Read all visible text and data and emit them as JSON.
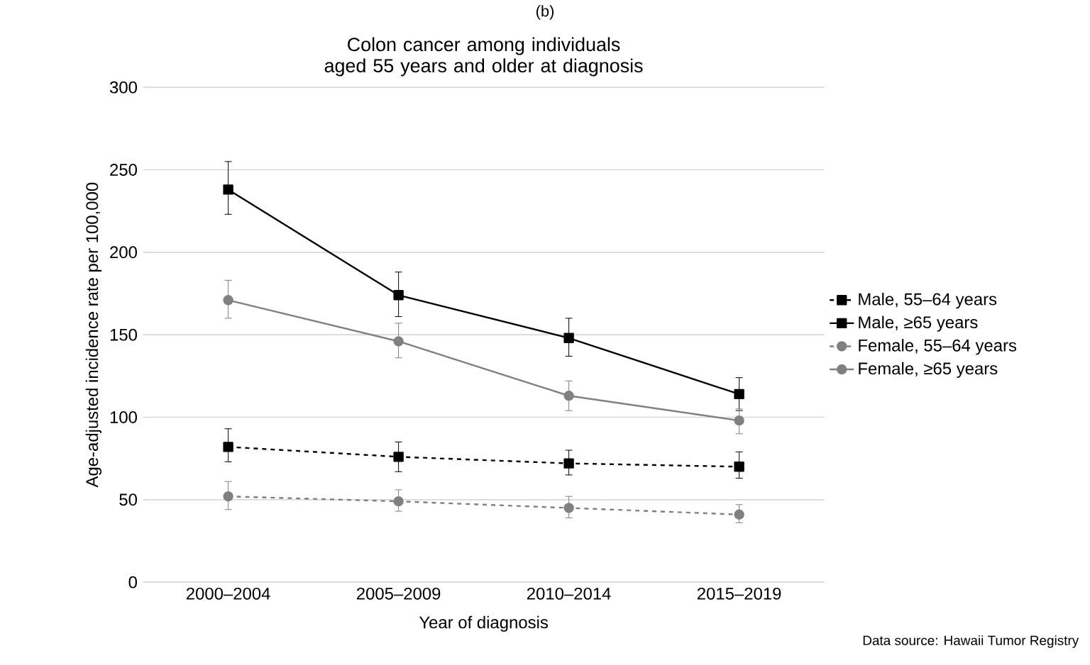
{
  "chart_data": {
    "type": "line",
    "title": "Colon cancer among individuals aged 55 years and older at diagnosis",
    "xlabel": "Year of diagnosis",
    "ylabel": "Age-adjusted incidence rate per 100,000",
    "categories": [
      "2000–2004",
      "2005–2009",
      "2010–2014",
      "2015–2019"
    ],
    "series": [
      {
        "name": "Male, 55–64 years",
        "color": "#000000",
        "marker": "square",
        "line_style": "dashed",
        "values": [
          82,
          76,
          72,
          70
        ],
        "errors": [
          [
            73,
            93
          ],
          [
            67,
            85
          ],
          [
            65,
            80
          ],
          [
            63,
            79
          ]
        ]
      },
      {
        "name": "Male, ≥65 years",
        "color": "#000000",
        "marker": "square",
        "line_style": "solid",
        "values": [
          238,
          174,
          148,
          114
        ],
        "errors": [
          [
            223,
            255
          ],
          [
            161,
            188
          ],
          [
            137,
            160
          ],
          [
            104,
            124
          ]
        ]
      },
      {
        "name": "Female, 55–64 years",
        "color": "#808080",
        "marker": "circle",
        "line_style": "dashed",
        "values": [
          52,
          49,
          45,
          41
        ],
        "errors": [
          [
            44,
            61
          ],
          [
            43,
            56
          ],
          [
            39,
            52
          ],
          [
            36,
            47
          ]
        ]
      },
      {
        "name": "Female, ≥65 years",
        "color": "#808080",
        "marker": "circle",
        "line_style": "solid",
        "values": [
          171,
          146,
          113,
          98
        ],
        "errors": [
          [
            160,
            183
          ],
          [
            136,
            157
          ],
          [
            104,
            122
          ],
          [
            90,
            105
          ]
        ]
      }
    ],
    "ylim": [
      0,
      300
    ],
    "yticks": [
      0,
      50,
      100,
      150,
      200,
      250,
      300
    ],
    "grid": "y",
    "legend": "right",
    "annotations": [
      "(b)",
      "Data source: Hawaii Tumor Registry"
    ]
  }
}
